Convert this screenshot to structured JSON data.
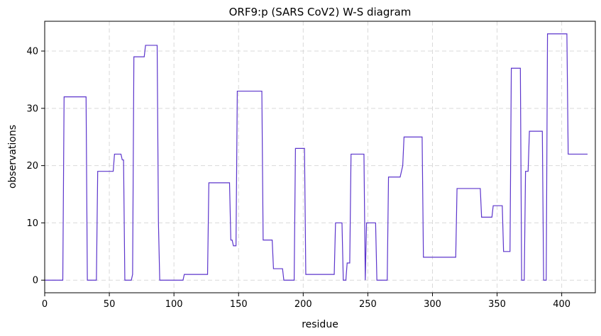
{
  "chart_data": {
    "type": "line",
    "title": "ORF9:p (SARS CoV2) W-S diagram",
    "xlabel": "residue",
    "ylabel": "observations",
    "xlim": [
      0,
      426
    ],
    "ylim": [
      -2.2,
      45.2
    ],
    "xticks": [
      0,
      50,
      100,
      150,
      200,
      250,
      300,
      350,
      400
    ],
    "yticks": [
      0,
      10,
      20,
      30,
      40
    ],
    "grid": true,
    "line_color": "#5c35cc",
    "series": [
      {
        "x": [
          0,
          14,
          15,
          32,
          33,
          40,
          41,
          53,
          54,
          59,
          60,
          61,
          62,
          67,
          68,
          69,
          77,
          78,
          87,
          88,
          89,
          107,
          108,
          126,
          127,
          143,
          144,
          145,
          146,
          148,
          149,
          168,
          169,
          176,
          177,
          184,
          185,
          193,
          194,
          201,
          202,
          224,
          225,
          230,
          231,
          233,
          234,
          236,
          237,
          247,
          248,
          249,
          250,
          256,
          257,
          265,
          266,
          274,
          275,
          277,
          278,
          292,
          293,
          318,
          319,
          337,
          338,
          346,
          347,
          354,
          355,
          360,
          361,
          368,
          369,
          371,
          372,
          374,
          375,
          377,
          378,
          385,
          386,
          388,
          389,
          404,
          405,
          420
        ],
        "y": [
          0,
          0,
          32,
          32,
          0,
          0,
          19,
          19,
          22,
          22,
          21,
          21,
          0,
          0,
          1,
          39,
          39,
          41,
          41,
          10,
          0,
          0,
          1,
          1,
          17,
          17,
          7,
          7,
          6,
          6,
          33,
          33,
          7,
          7,
          2,
          2,
          0,
          0,
          23,
          23,
          1,
          1,
          10,
          10,
          0,
          0,
          3,
          3,
          22,
          22,
          0,
          10,
          10,
          10,
          0,
          0,
          18,
          18,
          18,
          20,
          25,
          25,
          4,
          4,
          16,
          16,
          11,
          11,
          13,
          13,
          5,
          5,
          37,
          37,
          0,
          0,
          19,
          19,
          26,
          26,
          26,
          26,
          0,
          0,
          43,
          43,
          22,
          22
        ]
      }
    ]
  }
}
